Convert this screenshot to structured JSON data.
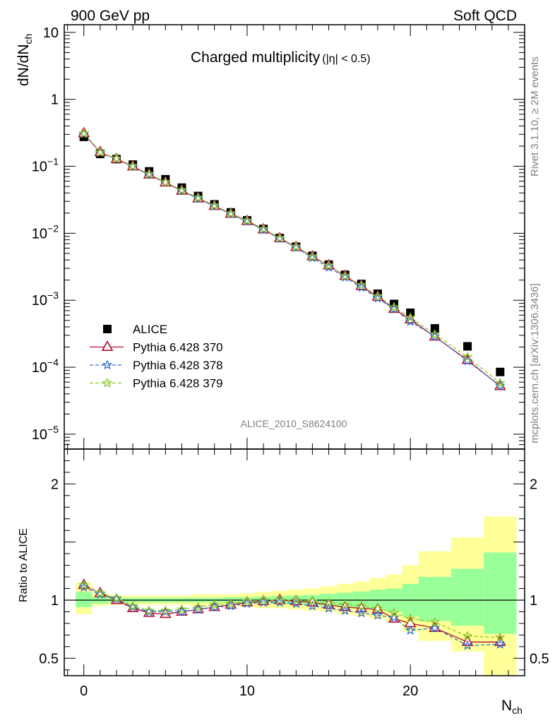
{
  "header": {
    "left": "900 GeV pp",
    "right": "Soft QCD"
  },
  "side_text": {
    "rivet": "Rivet 3.1.10, ≥ 2M events",
    "mcplots": "mcplots.cern.ch [arXiv:1306.3436]"
  },
  "chart_data": [
    {
      "type": "scatter",
      "title": "Charged multiplicity",
      "title_suffix": "(|η| < 0.5)",
      "watermark": "ALICE_2010_S8624100",
      "ylabel": "dN/dN",
      "ylabel_sub": "ch",
      "yscale": "log",
      "ylim": [
        6e-06,
        13
      ],
      "xlim": [
        -1.2,
        27
      ],
      "yticks": [
        {
          "v": 10,
          "text": "10"
        },
        {
          "v": 1,
          "text": "1"
        },
        {
          "v": 0.1,
          "base": "10",
          "exp": "−1"
        },
        {
          "v": 0.01,
          "base": "10",
          "exp": "−2"
        },
        {
          "v": 0.001,
          "base": "10",
          "exp": "−3"
        },
        {
          "v": 0.0001,
          "base": "10",
          "exp": "−4"
        },
        {
          "v": 1e-05,
          "base": "10",
          "exp": "−5"
        }
      ],
      "legend_position": "lower-left",
      "series": [
        {
          "name": "ALICE",
          "color": "#000000",
          "marker": "square",
          "x": [
            0,
            1,
            2,
            3,
            4,
            5,
            6,
            7,
            8,
            9,
            10,
            11,
            12,
            13,
            14,
            15,
            16,
            17,
            18,
            19,
            20,
            21.5,
            23.5,
            25.5
          ],
          "y": [
            0.275,
            0.153,
            0.128,
            0.106,
            0.084,
            0.064,
            0.048,
            0.036,
            0.027,
            0.0205,
            0.0156,
            0.0116,
            0.0085,
            0.0063,
            0.0046,
            0.0034,
            0.0024,
            0.00175,
            0.00125,
            0.00088,
            0.00065,
            0.00038,
            0.000205,
            8.5e-05
          ]
        },
        {
          "name": "Pythia 6.428 370",
          "color": "#b3112e",
          "marker": "triangle",
          "dash": "",
          "x": [
            0,
            1,
            2,
            3,
            4,
            5,
            6,
            7,
            8,
            9,
            10,
            11,
            12,
            13,
            14,
            15,
            16,
            17,
            18,
            19,
            20,
            21.5,
            23.5,
            25.5
          ],
          "y": [
            0.31,
            0.162,
            0.128,
            0.099,
            0.075,
            0.057,
            0.043,
            0.033,
            0.0255,
            0.0195,
            0.0152,
            0.0114,
            0.0084,
            0.0062,
            0.0045,
            0.0033,
            0.0023,
            0.00163,
            0.00112,
            0.00074,
            0.000515,
            0.000285,
            0.000128,
            5.2e-05
          ]
        },
        {
          "name": "Pythia 6.428 378",
          "color": "#2e6fd6",
          "marker": "star",
          "dash": "5,3",
          "x": [
            0,
            1,
            2,
            3,
            4,
            5,
            6,
            7,
            8,
            9,
            10,
            11,
            12,
            13,
            14,
            15,
            16,
            17,
            18,
            19,
            20,
            21.5,
            23.5,
            25.5
          ],
          "y": [
            0.305,
            0.16,
            0.13,
            0.099,
            0.075,
            0.058,
            0.043,
            0.033,
            0.0253,
            0.0193,
            0.015,
            0.0112,
            0.0083,
            0.0061,
            0.0043,
            0.0031,
            0.0022,
            0.00155,
            0.00107,
            0.00074,
            0.00048,
            0.00029,
            0.000124,
            5.3e-05
          ]
        },
        {
          "name": "Pythia 6.428 379",
          "color": "#8ac926",
          "marker": "star",
          "dash": "5,3",
          "x": [
            0,
            1,
            2,
            3,
            4,
            5,
            6,
            7,
            8,
            9,
            10,
            11,
            12,
            13,
            14,
            15,
            16,
            17,
            18,
            19,
            20,
            21.5,
            23.5,
            25.5
          ],
          "y": [
            0.31,
            0.162,
            0.131,
            0.101,
            0.077,
            0.058,
            0.044,
            0.034,
            0.026,
            0.0198,
            0.0155,
            0.0116,
            0.0085,
            0.0063,
            0.0045,
            0.0033,
            0.0023,
            0.00168,
            0.00115,
            0.00079,
            0.00055,
            0.00031,
            0.000142,
            5.8e-05
          ]
        }
      ]
    },
    {
      "type": "line",
      "ylabel": "Ratio to ALICE",
      "ylim": [
        0.35,
        2.3
      ],
      "xlim": [
        -1.2,
        27
      ],
      "xlabel": "N",
      "xlabel_sub": "ch",
      "xticks": [
        0,
        10,
        20
      ],
      "yticks": [
        {
          "v": 2,
          "text": "2"
        },
        {
          "v": 1,
          "text": "1"
        },
        {
          "v": 0.5,
          "text": "0.5"
        }
      ],
      "reference_line": 1,
      "band_colors": {
        "outer": "#ffff99",
        "inner": "#99ff99"
      },
      "bands": [
        {
          "x0": -0.5,
          "x1": 0.5,
          "outer": [
            0.88,
            1.15
          ],
          "inner": [
            0.94,
            1.07
          ]
        },
        {
          "x0": 0.5,
          "x1": 1.5,
          "outer": [
            0.95,
            1.06
          ],
          "inner": [
            0.97,
            1.03
          ]
        },
        {
          "x0": 1.5,
          "x1": 2.5,
          "outer": [
            0.96,
            1.04
          ],
          "inner": [
            0.98,
            1.02
          ]
        },
        {
          "x0": 2.5,
          "x1": 3.5,
          "outer": [
            0.96,
            1.04
          ],
          "inner": [
            0.98,
            1.02
          ]
        },
        {
          "x0": 3.5,
          "x1": 4.5,
          "outer": [
            0.96,
            1.04
          ],
          "inner": [
            0.98,
            1.02
          ]
        },
        {
          "x0": 4.5,
          "x1": 5.5,
          "outer": [
            0.96,
            1.04
          ],
          "inner": [
            0.98,
            1.02
          ]
        },
        {
          "x0": 5.5,
          "x1": 6.5,
          "outer": [
            0.96,
            1.04
          ],
          "inner": [
            0.98,
            1.02
          ]
        },
        {
          "x0": 6.5,
          "x1": 7.5,
          "outer": [
            0.95,
            1.05
          ],
          "inner": [
            0.98,
            1.02
          ]
        },
        {
          "x0": 7.5,
          "x1": 8.5,
          "outer": [
            0.95,
            1.05
          ],
          "inner": [
            0.98,
            1.02
          ]
        },
        {
          "x0": 8.5,
          "x1": 9.5,
          "outer": [
            0.95,
            1.05
          ],
          "inner": [
            0.975,
            1.025
          ]
        },
        {
          "x0": 9.5,
          "x1": 10.5,
          "outer": [
            0.94,
            1.06
          ],
          "inner": [
            0.975,
            1.025
          ]
        },
        {
          "x0": 10.5,
          "x1": 11.5,
          "outer": [
            0.93,
            1.07
          ],
          "inner": [
            0.97,
            1.03
          ]
        },
        {
          "x0": 11.5,
          "x1": 12.5,
          "outer": [
            0.93,
            1.08
          ],
          "inner": [
            0.965,
            1.035
          ]
        },
        {
          "x0": 12.5,
          "x1": 13.5,
          "outer": [
            0.92,
            1.09
          ],
          "inner": [
            0.96,
            1.04
          ]
        },
        {
          "x0": 13.5,
          "x1": 14.5,
          "outer": [
            0.91,
            1.1
          ],
          "inner": [
            0.955,
            1.045
          ]
        },
        {
          "x0": 14.5,
          "x1": 15.5,
          "outer": [
            0.9,
            1.12
          ],
          "inner": [
            0.95,
            1.055
          ]
        },
        {
          "x0": 15.5,
          "x1": 16.5,
          "outer": [
            0.88,
            1.14
          ],
          "inner": [
            0.94,
            1.065
          ]
        },
        {
          "x0": 16.5,
          "x1": 17.5,
          "outer": [
            0.86,
            1.16
          ],
          "inner": [
            0.93,
            1.075
          ]
        },
        {
          "x0": 17.5,
          "x1": 18.5,
          "outer": [
            0.84,
            1.19
          ],
          "inner": [
            0.92,
            1.09
          ]
        },
        {
          "x0": 18.5,
          "x1": 19.5,
          "outer": [
            0.81,
            1.22
          ],
          "inner": [
            0.9,
            1.1
          ]
        },
        {
          "x0": 19.5,
          "x1": 20.5,
          "outer": [
            0.73,
            1.3
          ],
          "inner": [
            0.86,
            1.14
          ]
        },
        {
          "x0": 20.5,
          "x1": 22.5,
          "outer": [
            0.65,
            1.42
          ],
          "inner": [
            0.82,
            1.2
          ]
        },
        {
          "x0": 22.5,
          "x1": 24.5,
          "outer": [
            0.56,
            1.54
          ],
          "inner": [
            0.78,
            1.27
          ]
        },
        {
          "x0": 24.5,
          "x1": 26.5,
          "outer": [
            0.35,
            1.72
          ],
          "inner": [
            0.71,
            1.41
          ]
        }
      ],
      "series": [
        {
          "name": "Pythia 6.428 370",
          "color": "#b3112e",
          "marker": "triangle",
          "dash": "",
          "x": [
            0,
            1,
            2,
            3,
            4,
            5,
            6,
            7,
            8,
            9,
            10,
            11,
            12,
            13,
            14,
            15,
            16,
            17,
            18,
            19,
            20,
            21.5,
            23.5,
            25.5
          ],
          "y": [
            1.13,
            1.06,
            1.0,
            0.93,
            0.89,
            0.88,
            0.9,
            0.92,
            0.94,
            0.96,
            0.98,
            0.99,
            1.0,
            0.99,
            0.98,
            0.96,
            0.94,
            0.93,
            0.92,
            0.84,
            0.8,
            0.76,
            0.64,
            0.64
          ]
        },
        {
          "name": "Pythia 6.428 378",
          "color": "#2e6fd6",
          "marker": "star",
          "dash": "5,3",
          "x": [
            0,
            1,
            2,
            3,
            4,
            5,
            6,
            7,
            8,
            9,
            10,
            11,
            12,
            13,
            14,
            15,
            16,
            17,
            18,
            19,
            20,
            21.5,
            23.5,
            25.5
          ],
          "y": [
            1.11,
            1.05,
            1.01,
            0.94,
            0.9,
            0.9,
            0.9,
            0.92,
            0.94,
            0.95,
            0.97,
            0.98,
            0.98,
            0.97,
            0.95,
            0.93,
            0.91,
            0.89,
            0.87,
            0.85,
            0.74,
            0.76,
            0.61,
            0.62
          ]
        },
        {
          "name": "Pythia 6.428 379",
          "color": "#8ac926",
          "marker": "star",
          "dash": "5,3",
          "x": [
            0,
            1,
            2,
            3,
            4,
            5,
            6,
            7,
            8,
            9,
            10,
            11,
            12,
            13,
            14,
            15,
            16,
            17,
            18,
            19,
            20,
            21.5,
            23.5,
            25.5
          ],
          "y": [
            1.13,
            1.06,
            1.02,
            0.95,
            0.91,
            0.91,
            0.92,
            0.94,
            0.96,
            0.97,
            0.99,
            1.0,
            1.0,
            1.0,
            0.99,
            0.98,
            0.96,
            0.95,
            0.93,
            0.89,
            0.84,
            0.81,
            0.69,
            0.68
          ]
        }
      ]
    }
  ]
}
